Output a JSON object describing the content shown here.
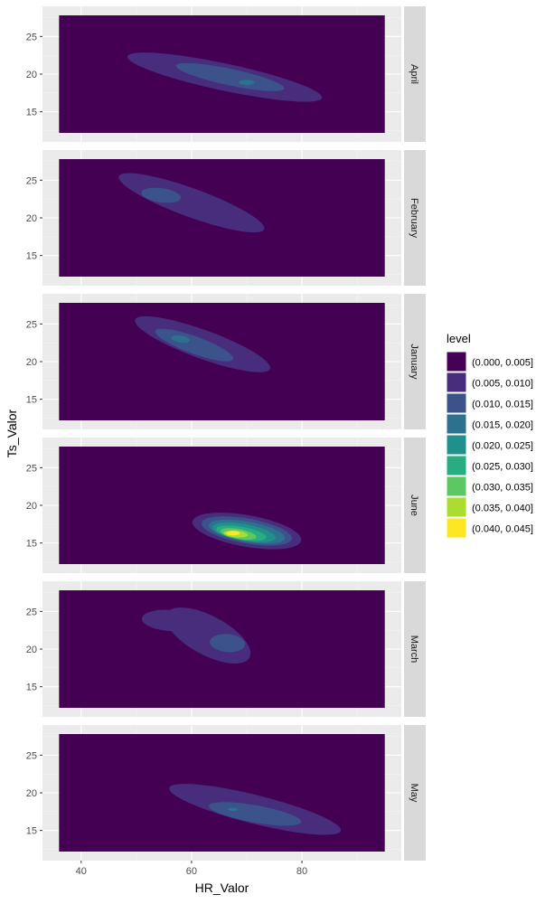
{
  "chart_data": {
    "type": "density_contour_facets",
    "xlabel": "HR_Valor",
    "ylabel": "Ts_Valor",
    "xlim": [
      33,
      98
    ],
    "ylim": [
      11,
      29
    ],
    "data_xrange": [
      36,
      95
    ],
    "data_yrange": [
      12.2,
      27.8
    ],
    "x_ticks": [
      40,
      60,
      80
    ],
    "y_ticks": [
      15,
      20,
      25
    ],
    "grid": true,
    "legend_position": "right",
    "legend": {
      "title": "level",
      "levels": [
        {
          "label": "(0.000, 0.005]",
          "color": "#440154"
        },
        {
          "label": "(0.005, 0.010]",
          "color": "#472D7B"
        },
        {
          "label": "(0.010, 0.015]",
          "color": "#3B528B"
        },
        {
          "label": "(0.015, 0.020]",
          "color": "#2C728E"
        },
        {
          "label": "(0.020, 0.025]",
          "color": "#21908C"
        },
        {
          "label": "(0.025, 0.030]",
          "color": "#27AD81"
        },
        {
          "label": "(0.030, 0.035]",
          "color": "#5DC863"
        },
        {
          "label": "(0.035, 0.040]",
          "color": "#AADC32"
        },
        {
          "label": "(0.040, 0.045]",
          "color": "#FDE725"
        }
      ]
    },
    "panels": [
      {
        "label": "April",
        "blobs": [
          {
            "level": 1,
            "cx": 66,
            "cy": 19.6,
            "rx": 18,
            "ry": 1.8,
            "angle": -12
          },
          {
            "level": 2,
            "cx": 67,
            "cy": 19.6,
            "rx": 10,
            "ry": 1.1,
            "angle": -12
          },
          {
            "level": 3,
            "cx": 70,
            "cy": 18.9,
            "rx": 1.4,
            "ry": 0.35,
            "angle": 0
          }
        ]
      },
      {
        "label": "February",
        "blobs": [
          {
            "level": 1,
            "cx": 60,
            "cy": 22.0,
            "rx": 14,
            "ry": 1.9,
            "angle": -20
          },
          {
            "level": 2,
            "cx": 54.5,
            "cy": 23.0,
            "rx": 3.6,
            "ry": 0.95,
            "angle": -8
          }
        ]
      },
      {
        "label": "January",
        "blobs": [
          {
            "level": 1,
            "cx": 62,
            "cy": 22.3,
            "rx": 13,
            "ry": 1.9,
            "angle": -20
          },
          {
            "level": 2,
            "cx": 60.5,
            "cy": 22.2,
            "rx": 7.5,
            "ry": 1.15,
            "angle": -20
          },
          {
            "level": 3,
            "cx": 58,
            "cy": 23.0,
            "rx": 1.7,
            "ry": 0.45,
            "angle": -8
          }
        ]
      },
      {
        "label": "June",
        "blobs": [
          {
            "level": 1,
            "cx": 70,
            "cy": 16.6,
            "rx": 10,
            "ry": 2.1,
            "angle": -10
          },
          {
            "level": 2,
            "cx": 70,
            "cy": 16.6,
            "rx": 8.3,
            "ry": 1.65,
            "angle": -10
          },
          {
            "level": 3,
            "cx": 70,
            "cy": 16.5,
            "rx": 7.0,
            "ry": 1.35,
            "angle": -10
          },
          {
            "level": 4,
            "cx": 69.5,
            "cy": 16.4,
            "rx": 5.8,
            "ry": 1.1,
            "angle": -10
          },
          {
            "level": 5,
            "cx": 69.0,
            "cy": 16.3,
            "rx": 4.6,
            "ry": 0.85,
            "angle": -10
          },
          {
            "level": 6,
            "cx": 68.5,
            "cy": 16.2,
            "rx": 3.3,
            "ry": 0.65,
            "angle": -10
          },
          {
            "level": 7,
            "cx": 68.0,
            "cy": 16.2,
            "rx": 2.2,
            "ry": 0.45,
            "angle": -5
          },
          {
            "level": 8,
            "cx": 67.5,
            "cy": 16.3,
            "rx": 1.2,
            "ry": 0.3,
            "angle": 0
          }
        ]
      },
      {
        "label": "March",
        "blobs": [
          {
            "level": 1,
            "cx": 56,
            "cy": 23.8,
            "rx": 5,
            "ry": 1.4,
            "angle": -4
          },
          {
            "level": 1,
            "cx": 63,
            "cy": 21.8,
            "rx": 8.5,
            "ry": 2.6,
            "angle": -28
          },
          {
            "level": 2,
            "cx": 66.5,
            "cy": 20.8,
            "rx": 3.2,
            "ry": 1.2,
            "angle": -5
          }
        ]
      },
      {
        "label": "May",
        "blobs": [
          {
            "level": 1,
            "cx": 71.5,
            "cy": 17.8,
            "rx": 16,
            "ry": 1.9,
            "angle": -14
          },
          {
            "level": 2,
            "cx": 71.5,
            "cy": 17.2,
            "rx": 8.5,
            "ry": 1.15,
            "angle": -10
          },
          {
            "level": 3,
            "cx": 67.5,
            "cy": 17.8,
            "rx": 0.9,
            "ry": 0.22,
            "angle": 0
          }
        ]
      }
    ]
  }
}
